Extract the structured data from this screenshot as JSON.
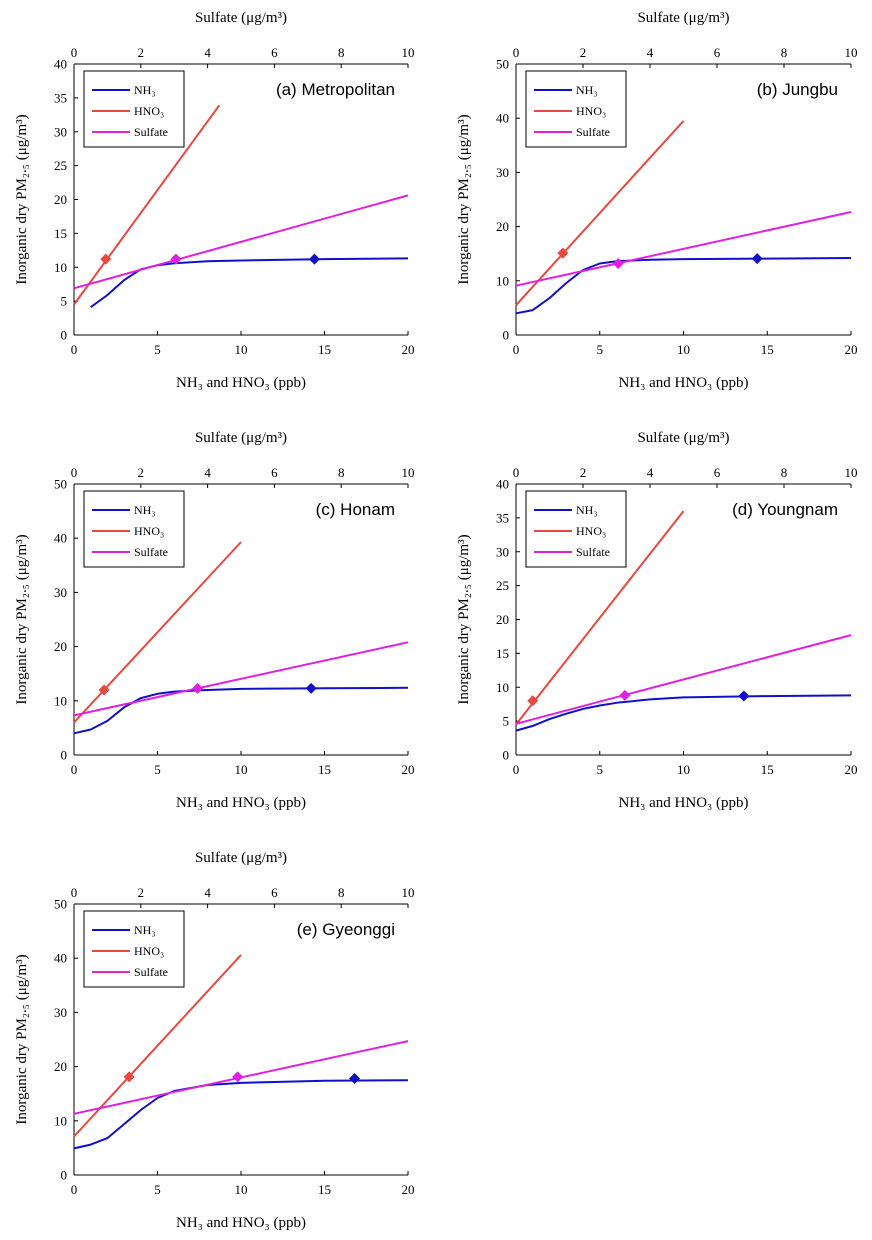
{
  "colors": {
    "nh3": "#1010c8",
    "hno3": "#e84840",
    "sulfate": "#e020e0",
    "axis": "#000000"
  },
  "chart_data": [
    {
      "type": "line",
      "panel_label": "(a) Metropolitan",
      "top_axis_label": "Sulfate (μg/m³)",
      "xlabel": "NH₃ and HNO₃ (ppb)",
      "ylabel": "Inorganic dry PM₂.₅ (μg/m³)",
      "xlim": [
        0,
        20
      ],
      "x2lim": [
        0,
        10
      ],
      "ylim": [
        0,
        40
      ],
      "xticks": [
        0,
        5,
        10,
        15,
        20
      ],
      "x2ticks": [
        0,
        2,
        4,
        6,
        8,
        10
      ],
      "yticks": [
        0,
        5,
        10,
        15,
        20,
        25,
        30,
        35,
        40
      ],
      "legend": [
        "NH₃",
        "HNO₃",
        "Sulfate"
      ],
      "series": [
        {
          "name": "NH₃",
          "axis": "bottom",
          "x": [
            1,
            2,
            3,
            4,
            5,
            6,
            8,
            10,
            15,
            20
          ],
          "y": [
            4.1,
            5.9,
            8.1,
            9.7,
            10.3,
            10.6,
            10.9,
            11.0,
            11.2,
            11.3
          ],
          "marker": [
            14.4,
            11.2
          ]
        },
        {
          "name": "HNO₃",
          "axis": "bottom",
          "x": [
            0,
            8.7
          ],
          "y": [
            4.5,
            33.9
          ],
          "marker": [
            1.9,
            11.2
          ]
        },
        {
          "name": "Sulfate",
          "axis": "top",
          "x": [
            0,
            10
          ],
          "y": [
            6.9,
            20.6
          ],
          "marker": [
            3.05,
            11.2
          ]
        }
      ]
    },
    {
      "type": "line",
      "panel_label": "(b) Jungbu",
      "top_axis_label": "Sulfate (μg/m³)",
      "xlabel": "NH₃ and HNO₃ (ppb)",
      "ylabel": "Inorganic dry PM₂.₅ (μg/m³)",
      "xlim": [
        0,
        20
      ],
      "x2lim": [
        0,
        10
      ],
      "ylim": [
        0,
        50
      ],
      "xticks": [
        0,
        5,
        10,
        15,
        20
      ],
      "x2ticks": [
        0,
        2,
        4,
        6,
        8,
        10
      ],
      "yticks": [
        0,
        10,
        20,
        30,
        40,
        50
      ],
      "legend": [
        "NH₃",
        "HNO₃",
        "Sulfate"
      ],
      "series": [
        {
          "name": "NH₃",
          "axis": "bottom",
          "x": [
            0,
            1,
            2,
            3,
            4,
            5,
            6,
            8,
            10,
            15,
            20
          ],
          "y": [
            4.0,
            4.6,
            6.8,
            9.6,
            12.0,
            13.2,
            13.6,
            13.9,
            14.0,
            14.1,
            14.2
          ],
          "marker": [
            14.4,
            14.1
          ]
        },
        {
          "name": "HNO₃",
          "axis": "bottom",
          "x": [
            0,
            10
          ],
          "y": [
            5.5,
            39.5
          ],
          "marker": [
            2.8,
            15.1
          ]
        },
        {
          "name": "Sulfate",
          "axis": "top",
          "x": [
            0,
            10
          ],
          "y": [
            9.1,
            22.7
          ],
          "marker": [
            3.05,
            13.2
          ]
        }
      ]
    },
    {
      "type": "line",
      "panel_label": "(c) Honam",
      "top_axis_label": "Sulfate (μg/m³)",
      "xlabel": "NH₃ and HNO₃ (ppb)",
      "ylabel": "Inorganic dry PM₂.₅ (μg/m³)",
      "xlim": [
        0,
        20
      ],
      "x2lim": [
        0,
        10
      ],
      "ylim": [
        0,
        50
      ],
      "xticks": [
        0,
        5,
        10,
        15,
        20
      ],
      "x2ticks": [
        0,
        2,
        4,
        6,
        8,
        10
      ],
      "yticks": [
        0,
        10,
        20,
        30,
        40,
        50
      ],
      "legend": [
        "NH₃",
        "HNO₃",
        "Sulfate"
      ],
      "series": [
        {
          "name": "NH₃",
          "axis": "bottom",
          "x": [
            0,
            1,
            2,
            3,
            4,
            5,
            6,
            8,
            10,
            15,
            20
          ],
          "y": [
            4.0,
            4.7,
            6.3,
            8.8,
            10.5,
            11.3,
            11.7,
            12.0,
            12.2,
            12.3,
            12.4
          ],
          "marker": [
            14.2,
            12.3
          ]
        },
        {
          "name": "HNO₃",
          "axis": "bottom",
          "x": [
            0,
            10
          ],
          "y": [
            6.0,
            39.3
          ],
          "marker": [
            1.8,
            12.0
          ]
        },
        {
          "name": "Sulfate",
          "axis": "top",
          "x": [
            0,
            10
          ],
          "y": [
            7.3,
            20.8
          ],
          "marker": [
            3.7,
            12.3
          ]
        }
      ]
    },
    {
      "type": "line",
      "panel_label": "(d) Youngnam",
      "top_axis_label": "Sulfate (μg/m³)",
      "xlabel": "NH₃ and HNO₃ (ppb)",
      "ylabel": "Inorganic dry PM₂.₅ (μg/m³)",
      "xlim": [
        0,
        20
      ],
      "x2lim": [
        0,
        10
      ],
      "ylim": [
        0,
        40
      ],
      "xticks": [
        0,
        5,
        10,
        15,
        20
      ],
      "x2ticks": [
        0,
        2,
        4,
        6,
        8,
        10
      ],
      "yticks": [
        0,
        5,
        10,
        15,
        20,
        25,
        30,
        35,
        40
      ],
      "legend": [
        "NH₃",
        "HNO₃",
        "Sulfate"
      ],
      "series": [
        {
          "name": "NH₃",
          "axis": "bottom",
          "x": [
            0,
            1,
            2,
            3,
            4,
            5,
            6,
            8,
            10,
            15,
            20
          ],
          "y": [
            3.6,
            4.3,
            5.3,
            6.1,
            6.8,
            7.3,
            7.7,
            8.2,
            8.5,
            8.7,
            8.8
          ],
          "marker": [
            13.6,
            8.7
          ]
        },
        {
          "name": "HNO₃",
          "axis": "bottom",
          "x": [
            0,
            10
          ],
          "y": [
            4.5,
            36.0
          ],
          "marker": [
            1.0,
            8.0
          ]
        },
        {
          "name": "Sulfate",
          "axis": "top",
          "x": [
            0,
            10
          ],
          "y": [
            4.6,
            17.7
          ],
          "marker": [
            3.25,
            8.8
          ]
        }
      ]
    },
    {
      "type": "line",
      "panel_label": "(e) Gyeonggi",
      "top_axis_label": "Sulfate (μg/m³)",
      "xlabel": "NH₃ and HNO₃ (ppb)",
      "ylabel": "Inorganic dry PM₂.₅ (μg/m³)",
      "xlim": [
        0,
        20
      ],
      "x2lim": [
        0,
        10
      ],
      "ylim": [
        0,
        50
      ],
      "xticks": [
        0,
        5,
        10,
        15,
        20
      ],
      "x2ticks": [
        0,
        2,
        4,
        6,
        8,
        10
      ],
      "yticks": [
        0,
        10,
        20,
        30,
        40,
        50
      ],
      "legend": [
        "NH₃",
        "HNO₃",
        "Sulfate"
      ],
      "series": [
        {
          "name": "NH₃",
          "axis": "bottom",
          "x": [
            0,
            1,
            2,
            3,
            4,
            5,
            6,
            8,
            10,
            15,
            20
          ],
          "y": [
            4.9,
            5.6,
            6.8,
            9.4,
            12.0,
            14.2,
            15.5,
            16.6,
            17.0,
            17.4,
            17.5
          ],
          "marker": [
            16.8,
            17.8
          ]
        },
        {
          "name": "HNO₃",
          "axis": "bottom",
          "x": [
            0,
            10
          ],
          "y": [
            7.1,
            40.6
          ],
          "marker": [
            3.3,
            18.1
          ]
        },
        {
          "name": "Sulfate",
          "axis": "top",
          "x": [
            0,
            10
          ],
          "y": [
            11.3,
            24.7
          ],
          "marker": [
            4.9,
            18.1
          ]
        }
      ]
    }
  ]
}
